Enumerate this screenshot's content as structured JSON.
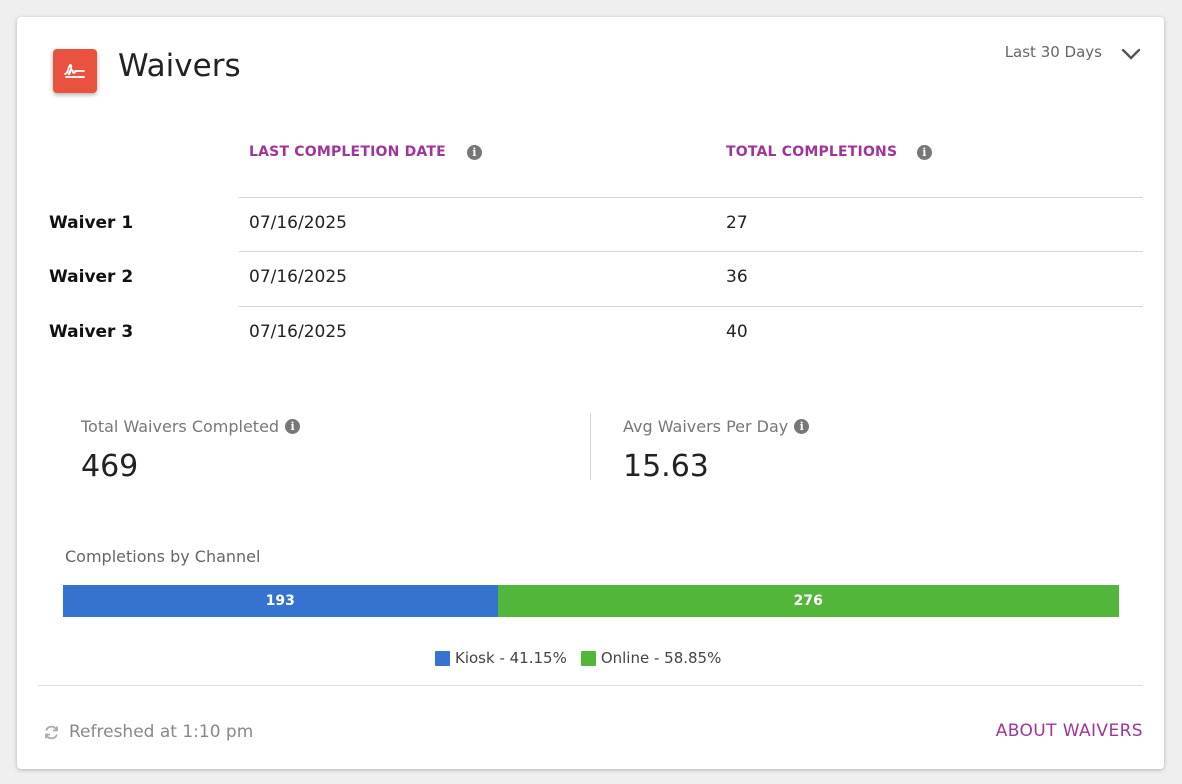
{
  "header": {
    "title": "Waivers",
    "range": "Last 30 Days",
    "icon": "signature-icon"
  },
  "table": {
    "columns": [
      "LAST COMPLETION DATE",
      "TOTAL COMPLETIONS"
    ],
    "rows": [
      {
        "label": "Waiver 1",
        "date": "07/16/2025",
        "total": "27"
      },
      {
        "label": "Waiver 2",
        "date": "07/16/2025",
        "total": "36"
      },
      {
        "label": "Waiver 3",
        "date": "07/16/2025",
        "total": "40"
      }
    ]
  },
  "stats": {
    "total_label": "Total Waivers Completed",
    "total_value": "469",
    "avg_label": "Avg Waivers Per Day",
    "avg_value": "15.63"
  },
  "channels": {
    "title": "Completions by Channel",
    "segments": [
      {
        "name": "Kiosk",
        "value": 193,
        "label": "193",
        "legend": "Kiosk - 41.15%",
        "color": "#3672d0"
      },
      {
        "name": "Online",
        "value": 276,
        "label": "276",
        "legend": "Online - 58.85%",
        "color": "#52b63a"
      }
    ]
  },
  "footer": {
    "refreshed": "Refreshed at 1:10 pm",
    "link": "ABOUT WAIVERS"
  },
  "colors": {
    "accent": "#a0349b",
    "icon_bg": "#e8523e"
  }
}
